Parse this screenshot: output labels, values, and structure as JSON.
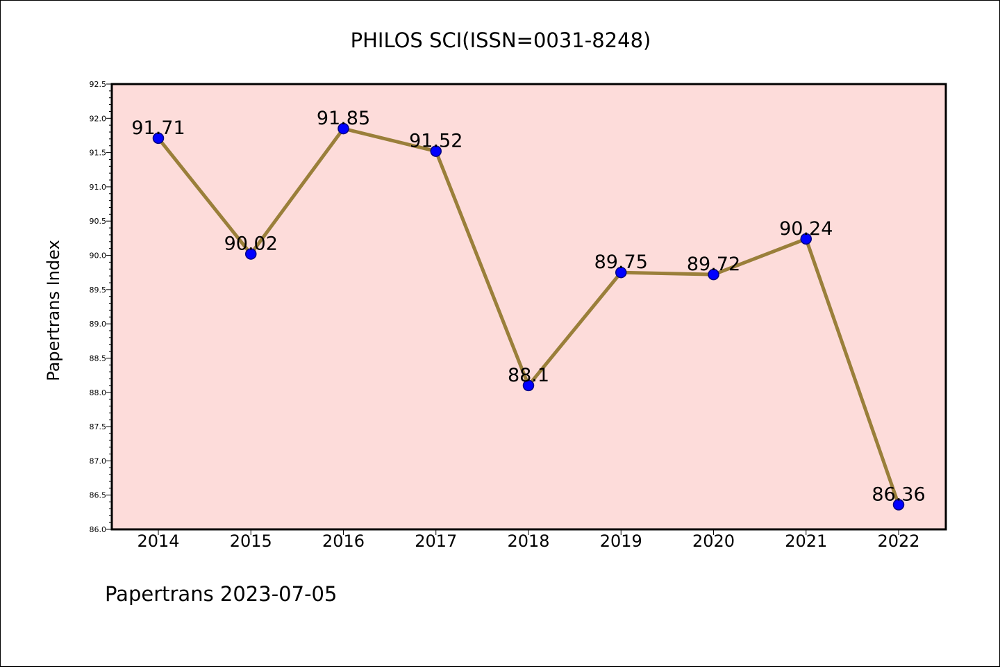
{
  "chart_data": {
    "type": "line",
    "title": "PHILOS SCI(ISSN=0031-8248)",
    "ylabel": "Papertrans Index",
    "xlabel": "",
    "footer": "Papertrans 2023-07-05",
    "categories": [
      "2014",
      "2015",
      "2016",
      "2017",
      "2018",
      "2019",
      "2020",
      "2021",
      "2022"
    ],
    "series": [
      {
        "values": [
          91.71,
          90.02,
          91.85,
          91.52,
          88.1,
          89.75,
          89.72,
          90.24,
          86.36
        ],
        "labels": [
          "91.71",
          "90.02",
          "91.85",
          "91.52",
          "88.1",
          "89.75",
          "89.72",
          "90.24",
          "86.36"
        ]
      }
    ],
    "ylim": [
      86.0,
      92.5
    ],
    "yticks": [
      "86.0",
      "86.5",
      "87.0",
      "87.5",
      "88.0",
      "88.5",
      "89.0",
      "89.5",
      "90.0",
      "90.5",
      "91.0",
      "91.5",
      "92.0",
      "92.5"
    ],
    "grid": false,
    "colors": {
      "plot_background": "#fddcda",
      "line": "#9a7f3a",
      "marker": "#0000ff",
      "marker_edge": "#000080"
    }
  }
}
